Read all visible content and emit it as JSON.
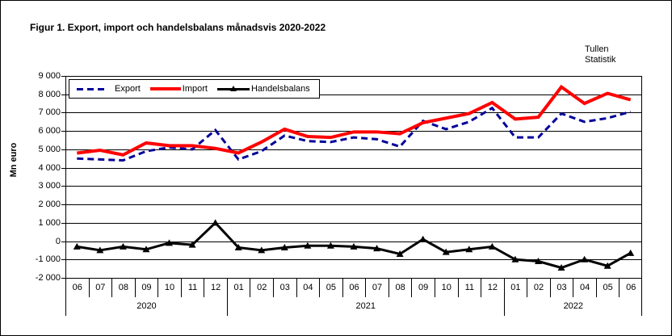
{
  "title": "Figur 1. Export, import och handelsbalans månadsvis 2020-2022",
  "publisher": {
    "line1": "Tullen",
    "line2": "Statistik"
  },
  "legend": {
    "export": "Export",
    "import": "Import",
    "balance": "Handelsbalans"
  },
  "colors": {
    "export": "#000099",
    "import": "#FF0000",
    "balance": "#000000",
    "grid": "#000000"
  },
  "chart_data": {
    "type": "line",
    "title": "Figur 1. Export, import och handelsbalans månadsvis 2020-2022",
    "xlabel": "",
    "ylabel": "Mn euro",
    "ylim": [
      -2000,
      9000
    ],
    "ytick_step": 1000,
    "y_tick_labels": [
      "9 000",
      "8 000",
      "7 000",
      "6 000",
      "5 000",
      "4 000",
      "3 000",
      "2 000",
      "1 000",
      "0",
      "-1 000",
      "-2 000"
    ],
    "grid": true,
    "legend_position": "top-left-inside",
    "x": [
      "06",
      "07",
      "08",
      "09",
      "10",
      "11",
      "12",
      "01",
      "02",
      "03",
      "04",
      "05",
      "06",
      "07",
      "08",
      "09",
      "10",
      "11",
      "12",
      "01",
      "02",
      "03",
      "04",
      "05",
      "06"
    ],
    "x_groups": [
      {
        "year": "2020",
        "months": [
          "06",
          "07",
          "08",
          "09",
          "10",
          "11",
          "12"
        ]
      },
      {
        "year": "2021",
        "months": [
          "01",
          "02",
          "03",
          "04",
          "05",
          "06",
          "07",
          "08",
          "09",
          "10",
          "11",
          "12"
        ]
      },
      {
        "year": "2022",
        "months": [
          "01",
          "02",
          "03",
          "04",
          "05",
          "06"
        ]
      }
    ],
    "series": [
      {
        "name": "Export",
        "color": "#000099",
        "style": "dashed",
        "values": [
          4500,
          4450,
          4400,
          4900,
          5100,
          5000,
          6050,
          4450,
          4900,
          5750,
          5450,
          5400,
          5650,
          5550,
          5150,
          6550,
          6100,
          6500,
          7250,
          5650,
          5650,
          6950,
          6500,
          6700,
          7050
        ]
      },
      {
        "name": "Import",
        "color": "#FF0000",
        "style": "solid",
        "values": [
          4800,
          4950,
          4700,
          5350,
          5200,
          5200,
          5050,
          4800,
          5400,
          6100,
          5700,
          5650,
          5950,
          5950,
          5850,
          6450,
          6700,
          6950,
          7550,
          6650,
          6750,
          8400,
          7500,
          8050,
          7700
        ]
      },
      {
        "name": "Handelsbalans",
        "color": "#000000",
        "style": "solid-triangle-markers",
        "values": [
          -300,
          -500,
          -300,
          -450,
          -100,
          -200,
          1000,
          -350,
          -500,
          -350,
          -250,
          -250,
          -300,
          -400,
          -700,
          100,
          -600,
          -450,
          -300,
          -1000,
          -1100,
          -1450,
          -1000,
          -1350,
          -650
        ]
      }
    ]
  }
}
